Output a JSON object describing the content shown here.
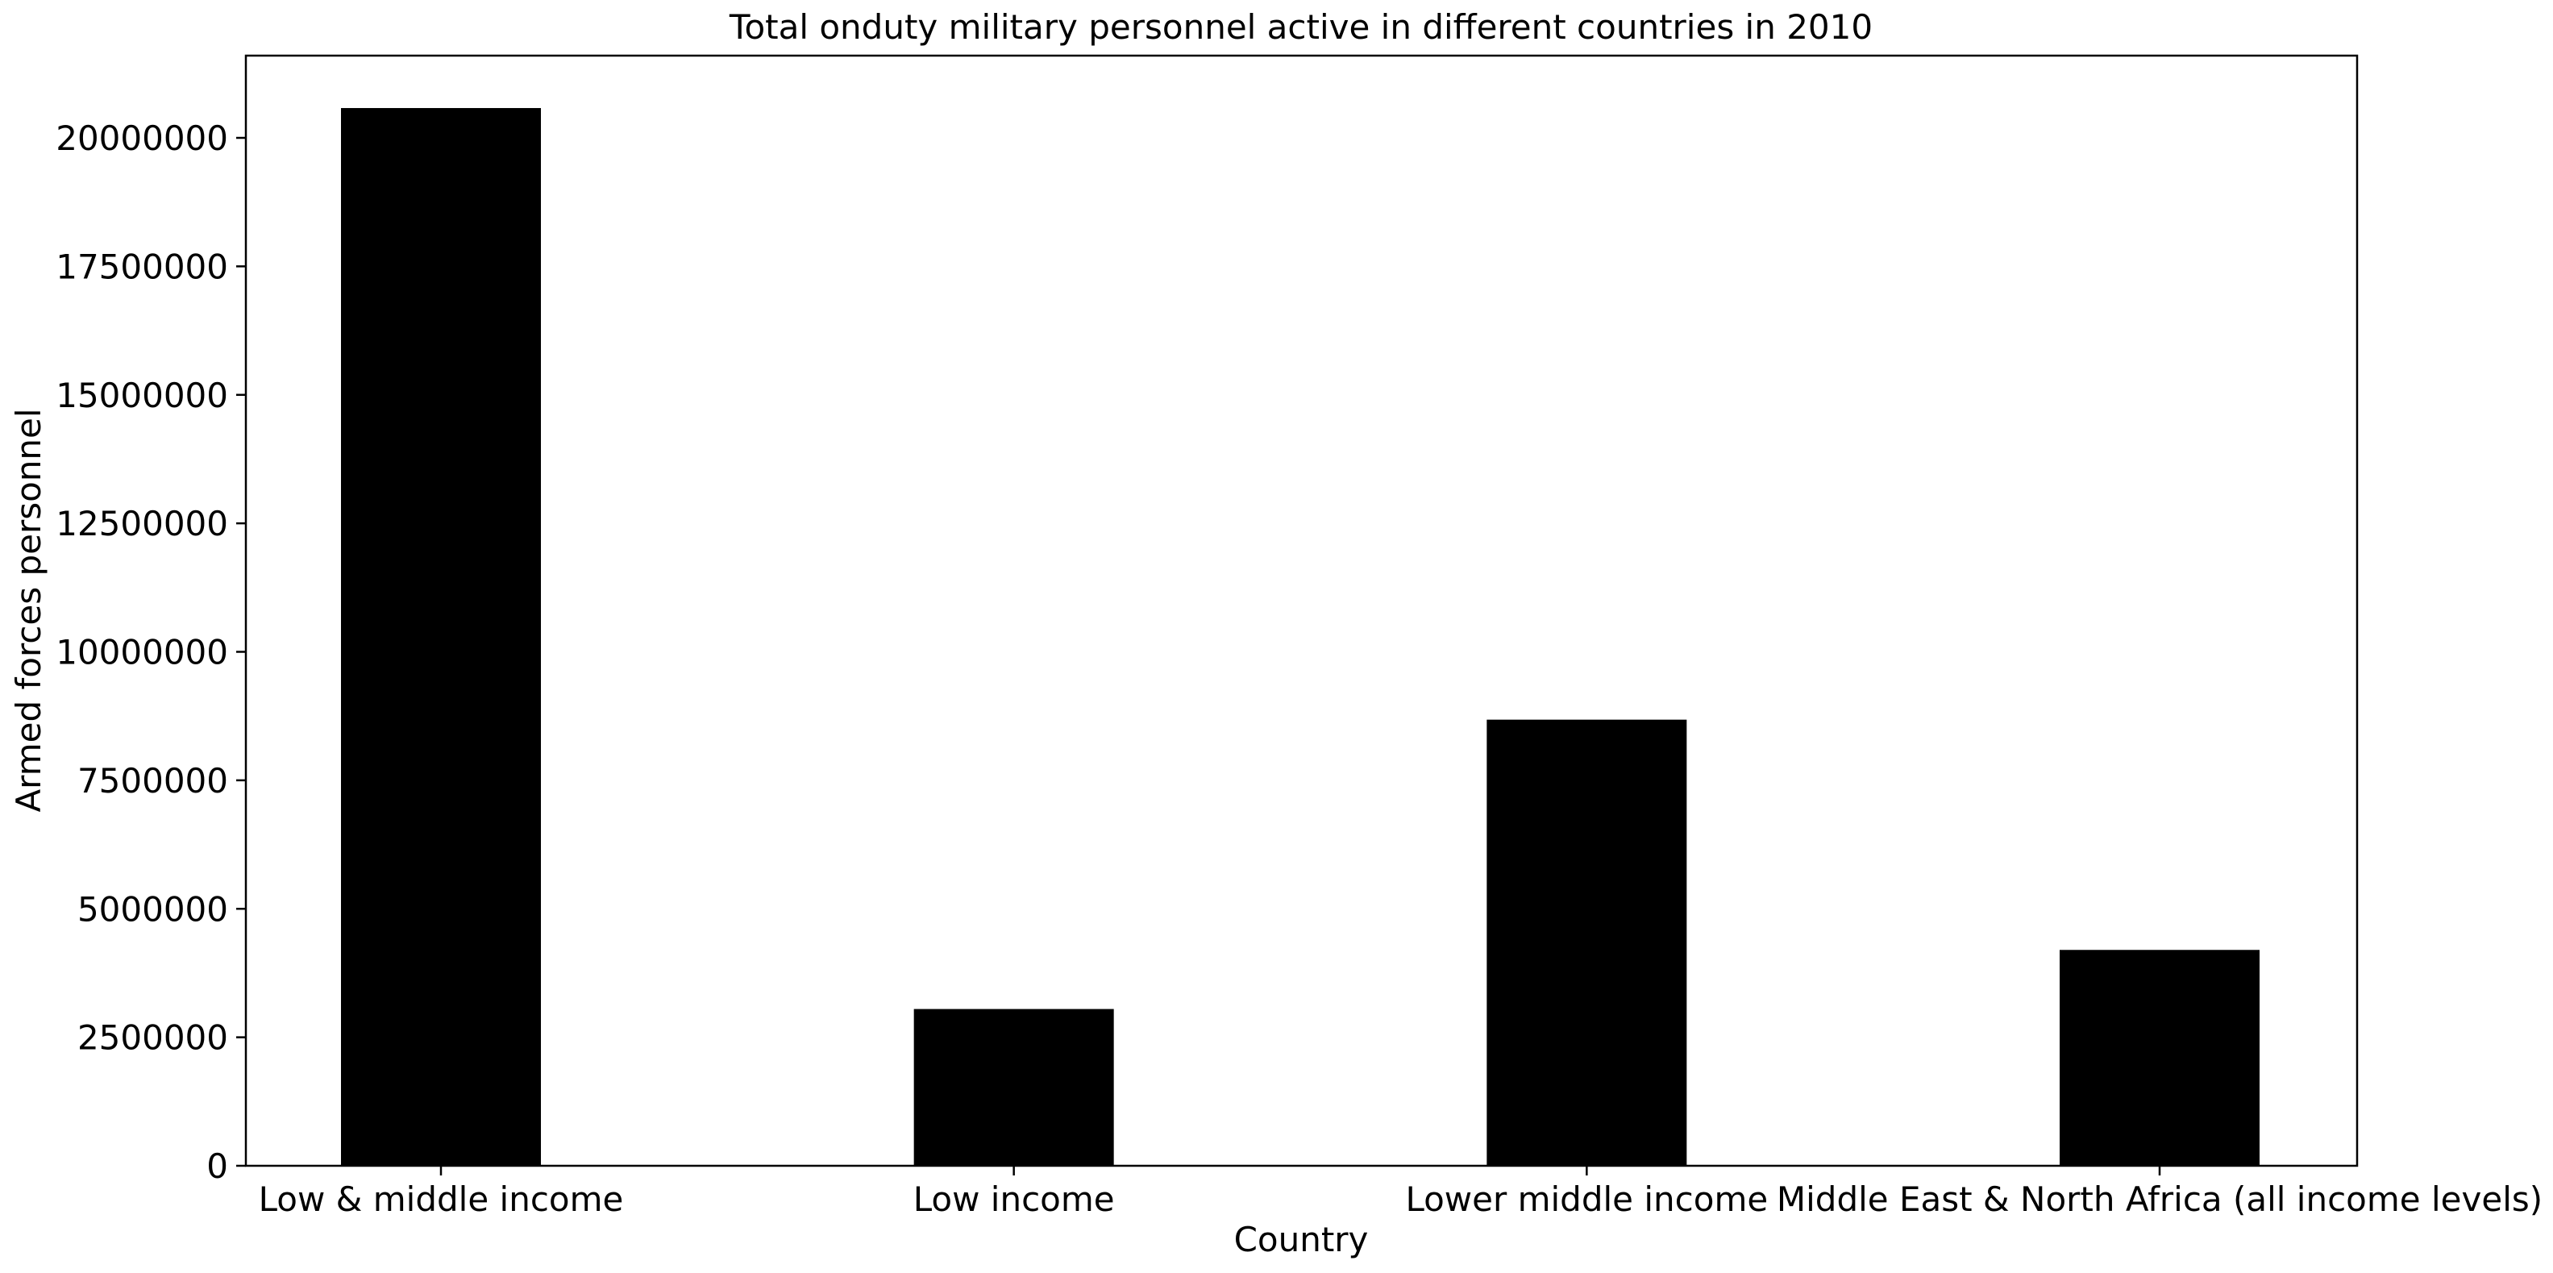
{
  "chart_data": {
    "type": "bar",
    "title": "Total onduty military personnel active in different countries in 2010",
    "xlabel": "Country",
    "ylabel": "Armed forces personnel",
    "categories": [
      "Low & middle income",
      "Low income",
      "Lower middle income",
      "Middle East & North Africa (all income levels)"
    ],
    "values": [
      20580000,
      3050000,
      8680000,
      4200000
    ],
    "ylim": [
      0,
      21600000
    ],
    "yticks": [
      0,
      2500000,
      5000000,
      7500000,
      10000000,
      12500000,
      15000000,
      17500000,
      20000000
    ],
    "ytick_labels": [
      "0",
      "2500000",
      "5000000",
      "7500000",
      "10000000",
      "12500000",
      "15000000",
      "17500000",
      "20000000"
    ],
    "bar_color": "#000000",
    "grid": false,
    "legend": "none"
  }
}
